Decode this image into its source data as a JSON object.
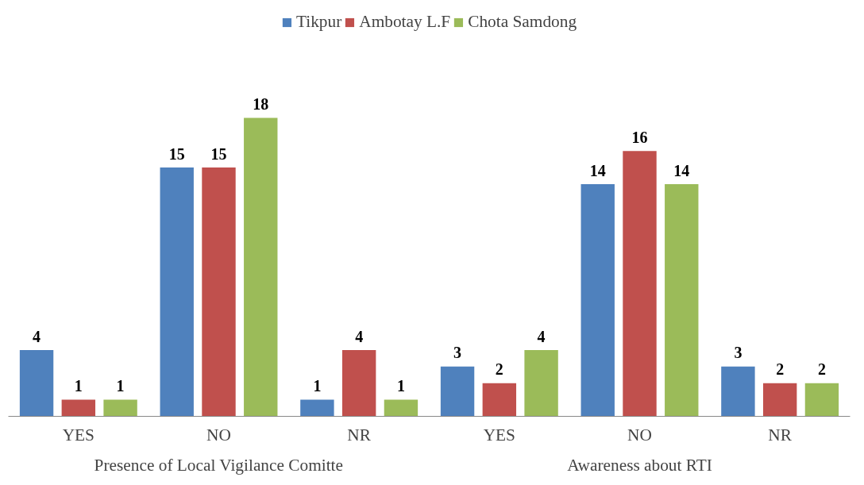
{
  "chart_data": {
    "type": "bar",
    "categories": [
      "YES",
      "NO",
      "NR",
      "YES",
      "NO",
      "NR"
    ],
    "series": [
      {
        "name": "Tikpur",
        "color": "#4f81bd",
        "values": [
          4,
          15,
          1,
          3,
          14,
          3
        ]
      },
      {
        "name": "Ambotay L.F",
        "color": "#c0504d",
        "values": [
          1,
          15,
          4,
          2,
          16,
          2
        ]
      },
      {
        "name": "Chota Samdong",
        "color": "#9bbb59",
        "values": [
          1,
          18,
          1,
          4,
          14,
          2
        ]
      }
    ],
    "data_labels": true,
    "legend": "top",
    "grid": false,
    "annotations": [
      "Presence of Local Vigilance Comitte",
      "Awareness about RTI"
    ]
  }
}
